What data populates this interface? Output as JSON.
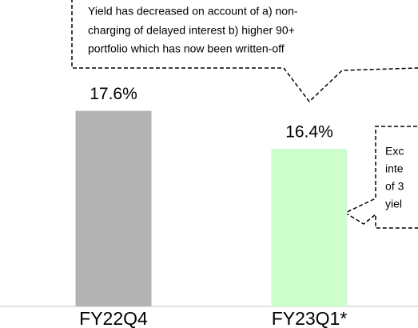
{
  "chart_data": {
    "type": "bar",
    "categories": [
      "FY22Q4",
      "FY23Q1*"
    ],
    "values": [
      17.6,
      16.4
    ],
    "value_labels": [
      "17.6%",
      "16.4%"
    ],
    "colors": [
      "#b3b3b3",
      "#ccffcc"
    ],
    "ylim": [
      11.4,
      20.1
    ],
    "annotations": [
      {
        "lines": [
          "Yield has decreased on account of a) non-",
          "charging of delayed interest b) higher 90+",
          "portfolio which has now been written-off"
        ]
      },
      {
        "lines": [
          "Exc",
          "inte",
          "of 3",
          "yiel"
        ]
      }
    ]
  }
}
